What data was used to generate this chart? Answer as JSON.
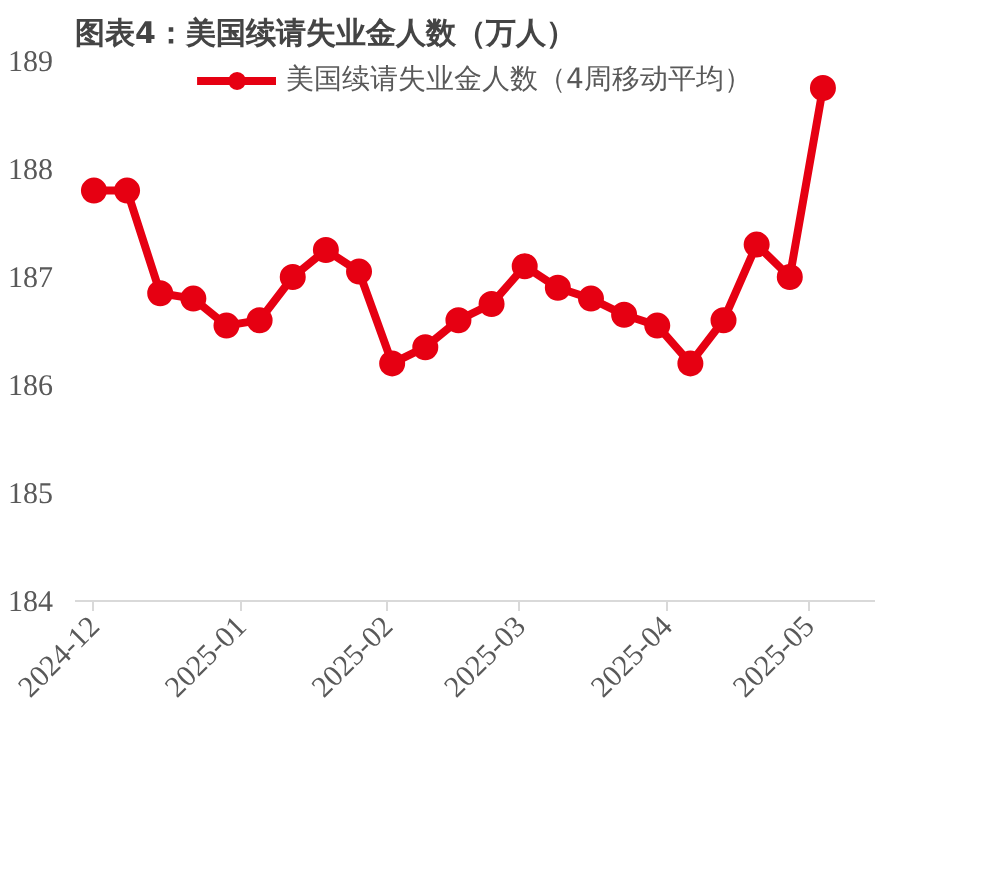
{
  "chart_data": {
    "type": "line",
    "title": "图表4：美国续请失业金人数（万人）",
    "x": [
      "2024-12-01",
      "2024-12-08",
      "2024-12-15",
      "2024-12-22",
      "2024-12-29",
      "2025-01-05",
      "2025-01-12",
      "2025-01-19",
      "2025-01-26",
      "2025-02-02",
      "2025-02-09",
      "2025-02-16",
      "2025-02-23",
      "2025-03-02",
      "2025-03-09",
      "2025-03-16",
      "2025-03-23",
      "2025-03-30",
      "2025-04-06",
      "2025-04-13",
      "2025-04-20",
      "2025-04-27",
      "2025-05-04"
    ],
    "series": [
      {
        "name": "美国续请失业金人数（4周移动平均）",
        "color": "#e60012",
        "values": [
          187.8,
          187.8,
          186.85,
          186.8,
          186.55,
          186.6,
          187.0,
          187.25,
          187.05,
          186.2,
          186.35,
          186.6,
          186.75,
          187.1,
          186.9,
          186.8,
          186.65,
          186.55,
          186.2,
          186.6,
          187.3,
          187.0,
          188.75
        ]
      }
    ],
    "ylim": [
      184,
      189
    ],
    "yticks": [
      184,
      185,
      186,
      187,
      188,
      189
    ],
    "xlim": [
      "2024-11-27",
      "2025-05-15"
    ],
    "xticks": [
      {
        "value": "2024-12-01",
        "label": "2024-12"
      },
      {
        "value": "2025-01-01",
        "label": "2025-01"
      },
      {
        "value": "2025-02-01",
        "label": "2025-02"
      },
      {
        "value": "2025-03-01",
        "label": "2025-03"
      },
      {
        "value": "2025-04-01",
        "label": "2025-04"
      },
      {
        "value": "2025-05-01",
        "label": "2025-05"
      }
    ],
    "grid": false,
    "legend": "top",
    "marker": "circle",
    "line_style": "solid"
  }
}
